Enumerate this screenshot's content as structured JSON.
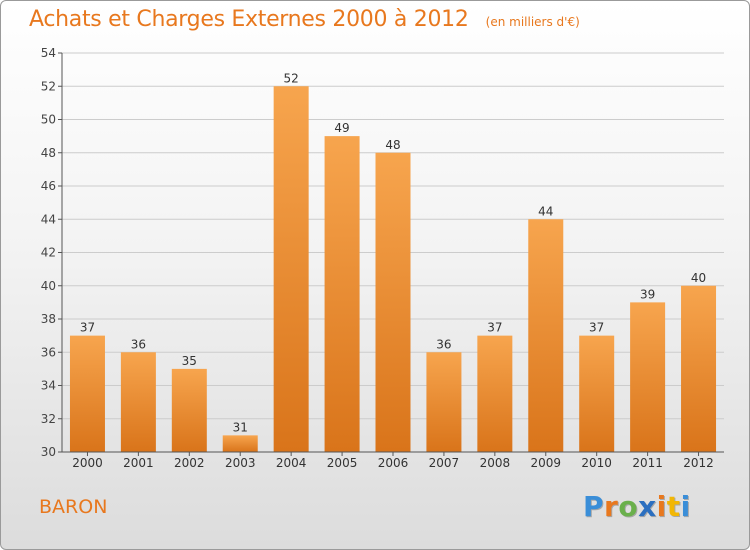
{
  "chart_data": {
    "type": "bar",
    "title": "Achats et Charges Externes 2000 à 2012",
    "unit": "(en milliers d'€)",
    "categories": [
      "2000",
      "2001",
      "2002",
      "2003",
      "2004",
      "2005",
      "2006",
      "2007",
      "2008",
      "2009",
      "2010",
      "2011",
      "2012"
    ],
    "values": [
      37,
      36,
      35,
      31,
      52,
      49,
      48,
      36,
      37,
      44,
      37,
      39,
      40
    ],
    "ylim": [
      30,
      54
    ],
    "yticks": [
      30,
      32,
      34,
      36,
      38,
      40,
      42,
      44,
      46,
      48,
      50,
      52,
      54
    ],
    "xlabel": "",
    "ylabel": "",
    "grid": "horizontal",
    "bar_color_top": "#f7a54e",
    "bar_color_bottom": "#d9741a"
  },
  "commune": "BARON",
  "logo": {
    "letters": [
      "P",
      "r",
      "o",
      "x",
      "i",
      "t",
      "i"
    ],
    "colors": [
      "#3a8ed8",
      "#e8781e",
      "#6ab04c",
      "#2b6fc0",
      "#e8781e",
      "#f2b705",
      "#3a8ed8"
    ]
  },
  "colors": {
    "title": "#e8781e",
    "axis": "#555555",
    "grid": "#cccccc"
  }
}
